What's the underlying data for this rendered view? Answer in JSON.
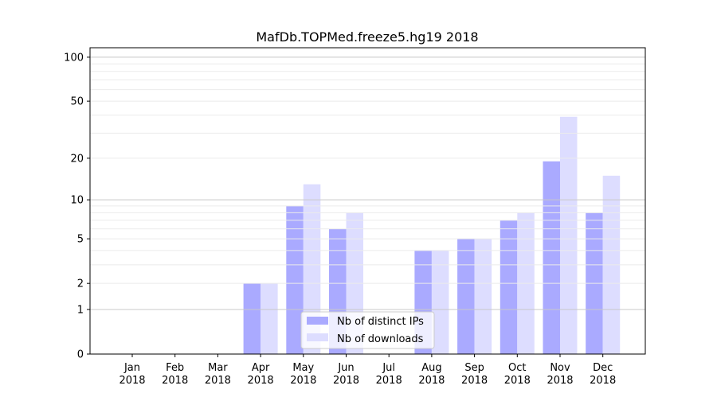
{
  "chart_data": {
    "type": "bar",
    "title": "MafDb.TOPMed.freeze5.hg19 2018",
    "xlabel": "",
    "ylabel": "",
    "yscale": "log1p",
    "ylim": [
      0,
      116
    ],
    "yticks": [
      0,
      1,
      2,
      5,
      10,
      20,
      50,
      100
    ],
    "ytick_labels": [
      "0",
      "1",
      "2",
      "5",
      "10",
      "20",
      "50",
      "100"
    ],
    "major_grid": [
      1,
      10,
      100
    ],
    "minor_grid": [
      3,
      4,
      6,
      7,
      8,
      9,
      30,
      40,
      60,
      70,
      80,
      90,
      20,
      50,
      2,
      5
    ],
    "categories": [
      "Jan\n2018",
      "Feb\n2018",
      "Mar\n2018",
      "Apr\n2018",
      "May\n2018",
      "Jun\n2018",
      "Jul\n2018",
      "Aug\n2018",
      "Sep\n2018",
      "Oct\n2018",
      "Nov\n2018",
      "Dec\n2018"
    ],
    "category_months": [
      "Jan",
      "Feb",
      "Mar",
      "Apr",
      "May",
      "Jun",
      "Jul",
      "Aug",
      "Sep",
      "Oct",
      "Nov",
      "Dec"
    ],
    "category_year": "2018",
    "series": [
      {
        "name": "Nb of distinct IPs",
        "color": "#aaaaff",
        "values": [
          0,
          0,
          0,
          2,
          9,
          6,
          0,
          4,
          5,
          7,
          19,
          8
        ]
      },
      {
        "name": "Nb of downloads",
        "color": "#ddddff",
        "values": [
          0,
          0,
          0,
          2,
          13,
          8,
          0,
          4,
          5,
          8,
          39,
          15
        ]
      }
    ],
    "legend": "bottom-center",
    "grid": true
  }
}
